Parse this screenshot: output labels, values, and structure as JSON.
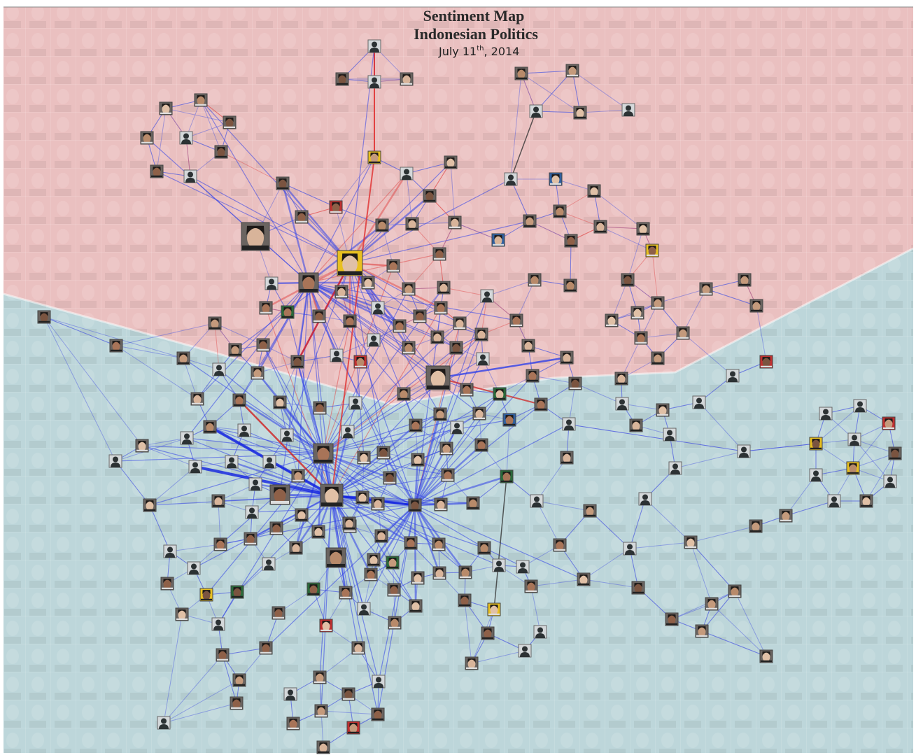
{
  "title": "Sentiment Map",
  "subtitle": "Indonesian Politics",
  "date": {
    "main": "July 11",
    "suffix": "th",
    "rest": ", 2014"
  }
}
